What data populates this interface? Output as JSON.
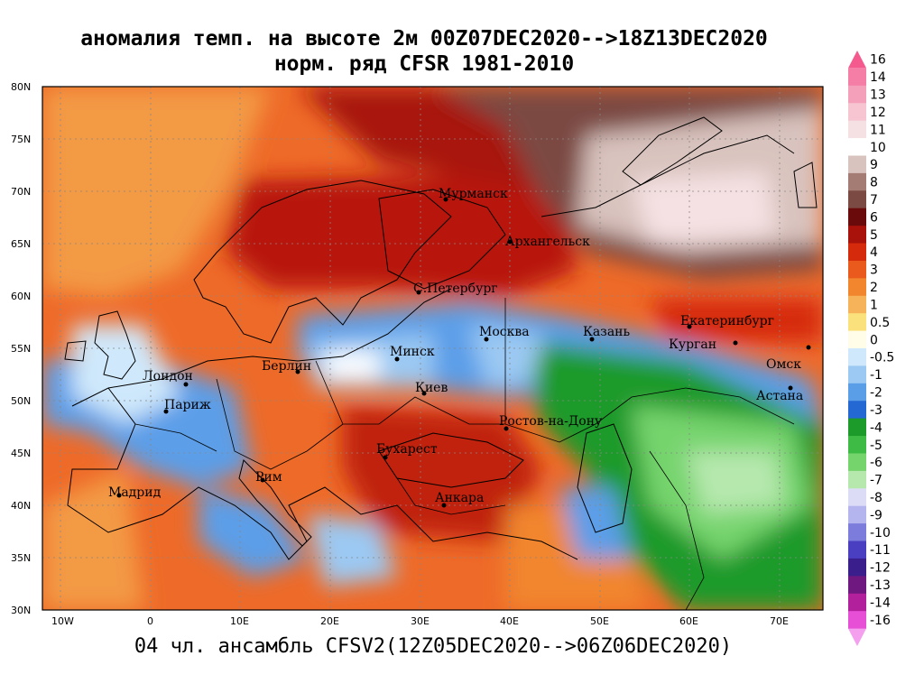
{
  "title_line1": "аномалия темп. на высоте 2м 00Z07DEC2020-->18Z13DEC2020",
  "title_line2": "норм. ряд CFSR 1981-2010",
  "bottom_caption": "04 чл. ансамбль CFSV2(12Z05DEC2020-->06Z06DEC2020)",
  "lat_labels": [
    "80N",
    "75N",
    "70N",
    "65N",
    "60N",
    "55N",
    "50N",
    "45N",
    "40N",
    "35N",
    "30N"
  ],
  "lon_labels": [
    "10W",
    "0",
    "10E",
    "20E",
    "30E",
    "40E",
    "50E",
    "60E",
    "70E"
  ],
  "cities": [
    {
      "name": "Мурманск"
    },
    {
      "name": "Архангельск"
    },
    {
      "name": "С.Петербург"
    },
    {
      "name": "Москва"
    },
    {
      "name": "Казань"
    },
    {
      "name": "Екатеринбург"
    },
    {
      "name": "Курган"
    },
    {
      "name": "Омск"
    },
    {
      "name": "Астана"
    },
    {
      "name": "Минск"
    },
    {
      "name": "Киев"
    },
    {
      "name": "Берлин"
    },
    {
      "name": "Лондон"
    },
    {
      "name": "Париж"
    },
    {
      "name": "Ростов-на-Дону"
    },
    {
      "name": "Бухарест"
    },
    {
      "name": "Рим"
    },
    {
      "name": "Мадрид"
    },
    {
      "name": "Анкара"
    }
  ],
  "legend": {
    "labels": [
      "16",
      "14",
      "13",
      "12",
      "11",
      "10",
      "9",
      "8",
      "7",
      "6",
      "5",
      "4",
      "3",
      "2",
      "1",
      "0.5",
      "0",
      "-0.5",
      "-1",
      "-2",
      "-3",
      "-4",
      "-5",
      "-6",
      "-7",
      "-8",
      "-9",
      "-10",
      "-11",
      "-12",
      "-13",
      "-14",
      "-16"
    ],
    "colors": [
      "#f55a8f",
      "#f47ea6",
      "#f5a0ba",
      "#f7c4d2",
      "#f5e1e3",
      "#ffffff",
      "#d9c3be",
      "#a47c74",
      "#7b4a42",
      "#6a0a0a",
      "#a8120a",
      "#d62a0c",
      "#ea5a1c",
      "#f1862e",
      "#f6b35a",
      "#fbe17c",
      "#fffde8",
      "#cfe8fb",
      "#9bc9f3",
      "#5b9ee8",
      "#2468d3",
      "#1c9a2a",
      "#3dbb44",
      "#76d46d",
      "#b6e8ae",
      "#dcdcf6",
      "#b4b4ee",
      "#7c7cdd",
      "#4a3fc0",
      "#3a1f8c",
      "#6e1880",
      "#b3209b",
      "#e64fd6",
      "#f4a0ee"
    ]
  },
  "colors": {
    "ocean_warm": "#ee6f2c",
    "land_warm": "#e85424",
    "very_warm": "#b31c0c",
    "cold_arctic": "#7b4a42",
    "cool_blue": "#5b9ee8",
    "cold_green": "#2a9a3a"
  }
}
